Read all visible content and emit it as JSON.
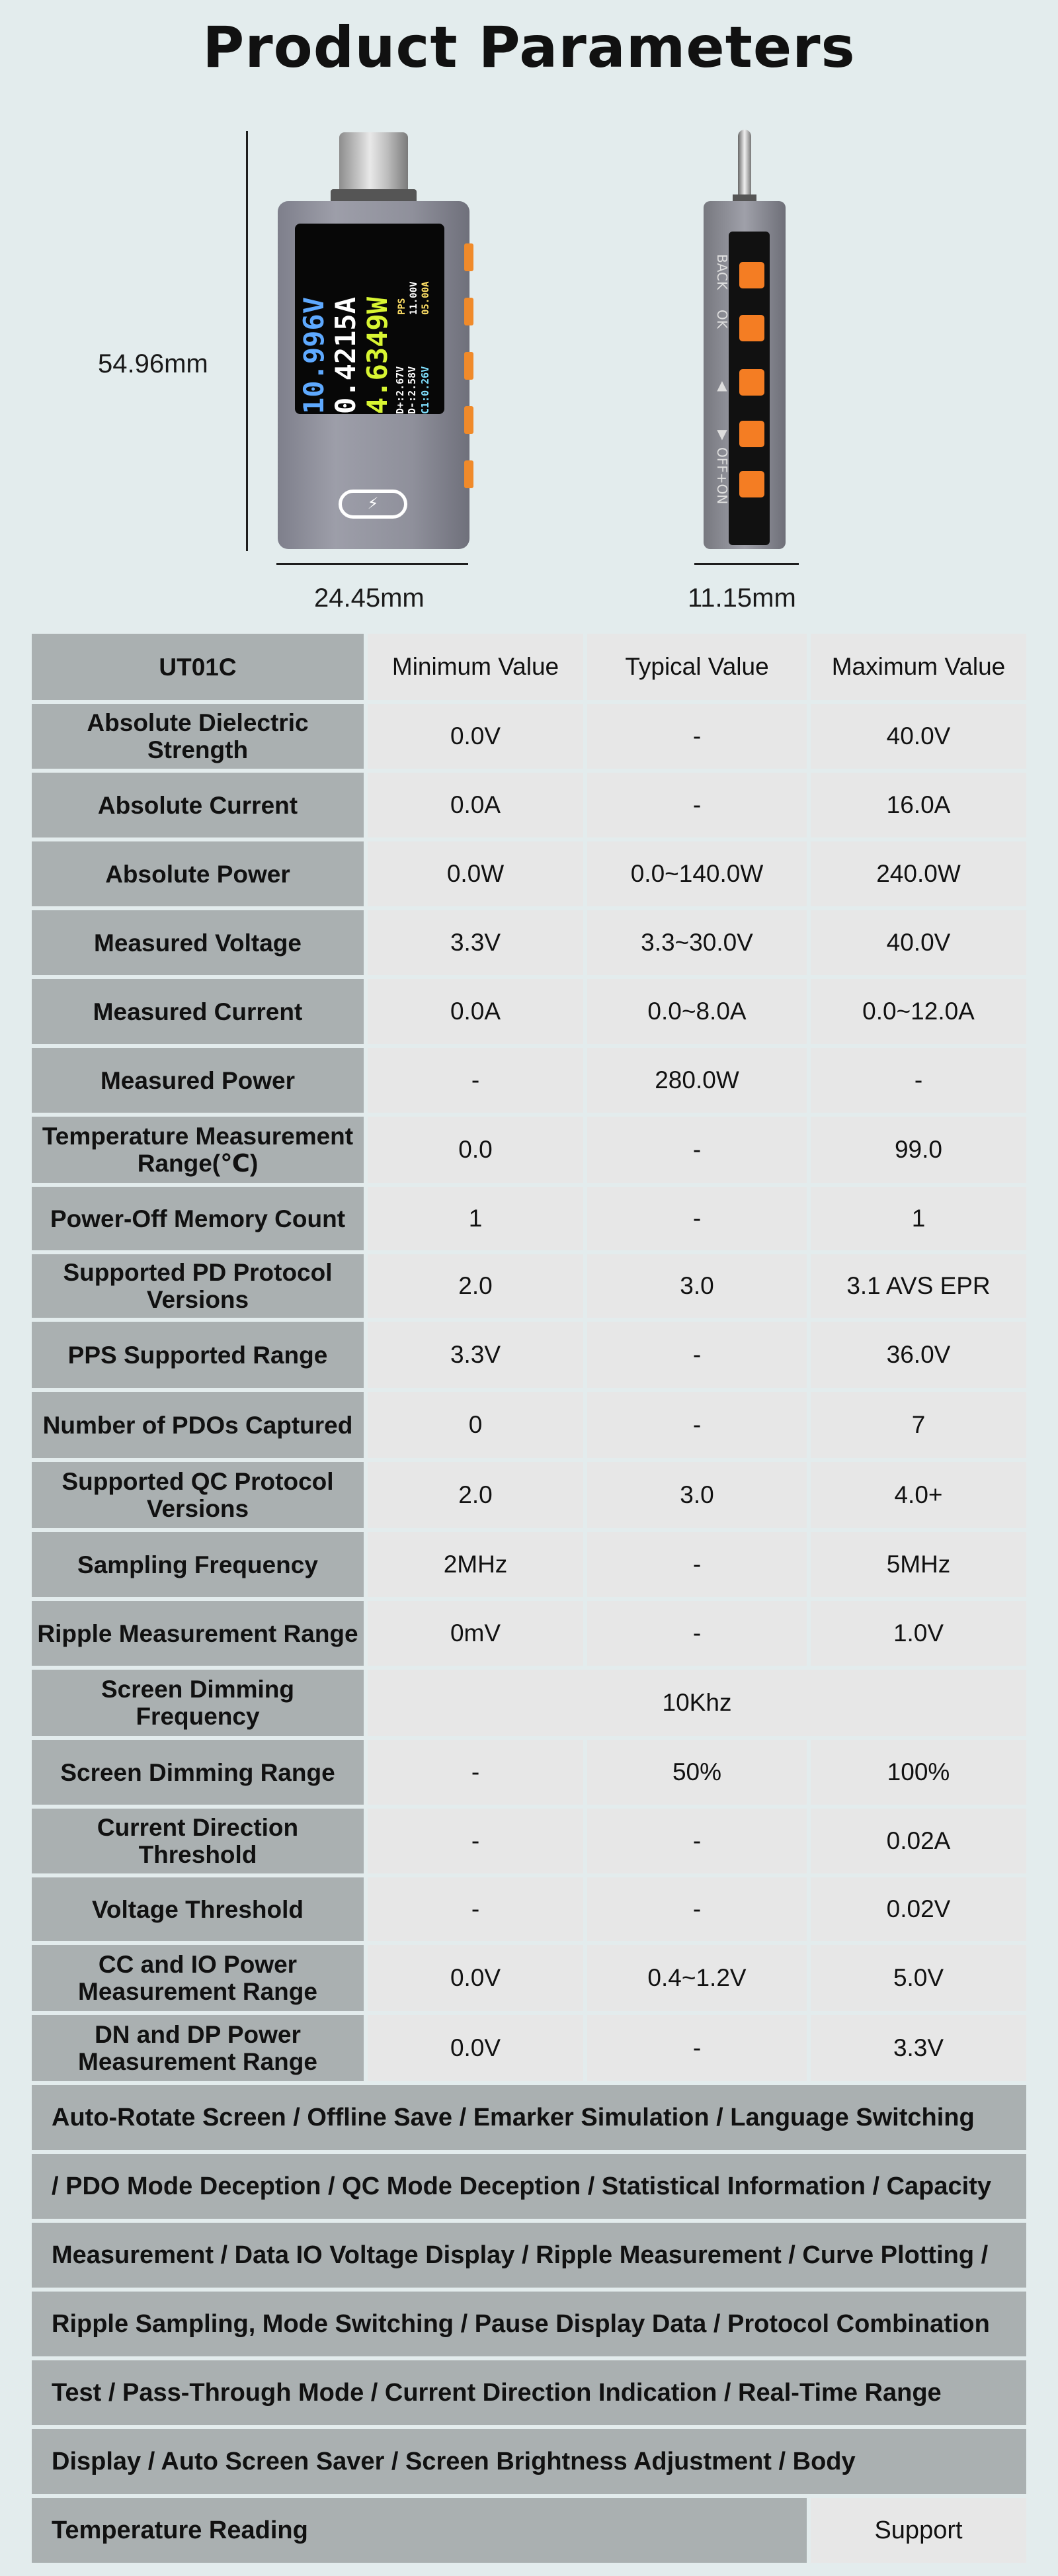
{
  "title": "Product Parameters",
  "dimensions": {
    "height": "54.96mm",
    "width": "24.45mm",
    "depth": "11.15mm"
  },
  "device_screen": {
    "line1": "10.996V",
    "line2": "0.4215A",
    "line3": "4.6349W",
    "line4": "D+:2.67V",
    "line5": "D-:2.58V",
    "line6": "C1:0.26V",
    "pps_label": "PPS",
    "pps_voltage": "11.00V",
    "pps_current": "05.00A"
  },
  "side_buttons": [
    "BACK",
    "OK",
    "▲",
    "▼",
    "OFF+ON"
  ],
  "colors": {
    "background": "#e3eced",
    "header_cell": "#aab0b1",
    "value_cell": "#e7e7e7",
    "button_orange": "#f47d23"
  },
  "table": {
    "headers": [
      "UT01C",
      "Minimum Value",
      "Typical Value",
      "Maximum Value"
    ],
    "rows": [
      [
        "Absolute Dielectric Strength",
        "0.0V",
        "-",
        "40.0V"
      ],
      [
        "Absolute Current",
        "0.0A",
        "-",
        "16.0A"
      ],
      [
        "Absolute Power",
        "0.0W",
        "0.0~140.0W",
        "240.0W"
      ],
      [
        "Measured Voltage",
        "3.3V",
        "3.3~30.0V",
        "40.0V"
      ],
      [
        "Measured Current",
        "0.0A",
        "0.0~8.0A",
        "0.0~12.0A"
      ],
      [
        "Measured Power",
        "-",
        "280.0W",
        "-"
      ],
      [
        "Temperature Measurement Range(℃)",
        "0.0",
        "-",
        "99.0"
      ],
      [
        "Power-Off Memory Count",
        "1",
        "-",
        "1"
      ],
      [
        "Supported PD Protocol Versions",
        "2.0",
        "3.0",
        "3.1 AVS EPR"
      ],
      [
        "PPS Supported Range",
        "3.3V",
        "-",
        "36.0V"
      ],
      [
        "Number of PDOs Captured",
        "0",
        "-",
        "7"
      ],
      [
        "Supported QC Protocol Versions",
        "2.0",
        "3.0",
        "4.0+"
      ],
      [
        "Sampling Frequency",
        "2MHz",
        "-",
        "5MHz"
      ],
      [
        "Ripple Measurement Range",
        "0mV",
        "-",
        "1.0V"
      ],
      [
        "Screen Dimming Frequency",
        "",
        "10Khz",
        ""
      ],
      [
        "Screen Dimming Range",
        "-",
        "50%",
        "100%"
      ],
      [
        "Current Direction Threshold",
        "-",
        "-",
        "0.02A"
      ],
      [
        "Voltage Threshold",
        "-",
        "-",
        "0.02V"
      ],
      [
        "CC and IO Power Measurement Range",
        "0.0V",
        "0.4~1.2V",
        "5.0V"
      ],
      [
        "DN and DP Power Measurement Range",
        "0.0V",
        "-",
        "3.3V"
      ]
    ]
  },
  "features": {
    "lines": [
      "Auto-Rotate Screen / Offline Save / Emarker Simulation  / Language Switching",
      "/ PDO Mode Deception / QC Mode Deception / Statistical Information / Capacity",
      "Measurement / Data IO Voltage Display / Ripple Measurement / Curve Plotting /",
      "Ripple Sampling, Mode Switching / Pause Display Data / Protocol Combination",
      "Test / Pass-Through Mode / Current Direction Indication / Real-Time Range",
      "Display / Auto Screen Saver / Screen Brightness Adjustment / Body",
      "Temperature Reading"
    ],
    "support": "Support"
  }
}
